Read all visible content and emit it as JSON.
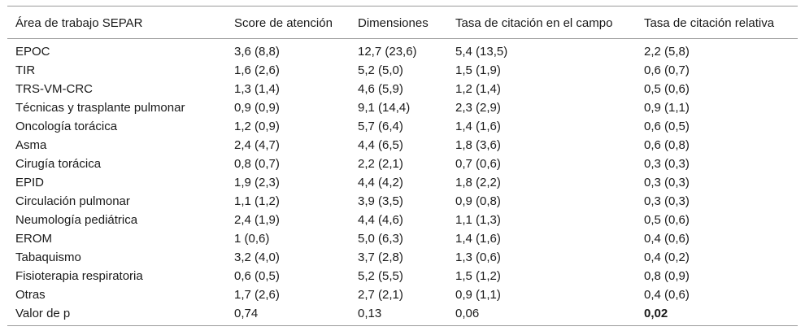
{
  "table": {
    "headers": [
      "Área de trabajo SEPAR",
      "Score de atención",
      "Dimensiones",
      "Tasa de citación en el campo",
      "Tasa de citación relativa"
    ],
    "rows": [
      [
        "EPOC",
        "3,6 (8,8)",
        "12,7 (23,6)",
        "5,4 (13,5)",
        "2,2 (5,8)"
      ],
      [
        "TIR",
        "1,6 (2,6)",
        "5,2 (5,0)",
        "1,5 (1,9)",
        "0,6 (0,7)"
      ],
      [
        "TRS-VM-CRC",
        "1,3 (1,4)",
        "4,6 (5,9)",
        "1,2 (1,4)",
        "0,5 (0,6)"
      ],
      [
        "Técnicas y trasplante pulmonar",
        "0,9 (0,9)",
        "9,1 (14,4)",
        "2,3 (2,9)",
        "0,9 (1,1)"
      ],
      [
        "Oncología torácica",
        "1,2 (0,9)",
        "5,7 (6,4)",
        "1,4 (1,6)",
        "0,6 (0,5)"
      ],
      [
        "Asma",
        "2,4 (4,7)",
        "4,4 (6,5)",
        "1,8 (3,6)",
        "0,6 (0,8)"
      ],
      [
        "Cirugía torácica",
        "0,8 (0,7)",
        "2,2 (2,1)",
        "0,7 (0,6)",
        "0,3 (0,3)"
      ],
      [
        "EPID",
        "1,9 (2,3)",
        "4,4 (4,2)",
        "1,8 (2,2)",
        "0,3 (0,3)"
      ],
      [
        "Circulación pulmonar",
        "1,1 (1,2)",
        "3,9 (3,5)",
        "0,9 (0,8)",
        "0,3 (0,3)"
      ],
      [
        "Neumología pediátrica",
        "2,4 (1,9)",
        "4,4 (4,6)",
        "1,1 (1,3)",
        "0,5 (0,6)"
      ],
      [
        "EROM",
        "1 (0,6)",
        "5,0 (6,3)",
        "1,4 (1,6)",
        "0,4 (0,6)"
      ],
      [
        "Tabaquismo",
        "3,2 (4,0)",
        "3,7 (2,8)",
        "1,3 (0,6)",
        "0,4 (0,2)"
      ],
      [
        "Fisioterapia respiratoria",
        "0,6 (0,5)",
        "5,2 (5,5)",
        "1,5 (1,2)",
        "0,8 (0,9)"
      ],
      [
        "Otras",
        "1,7 (2,6)",
        "2,7 (2,1)",
        "0,9 (1,1)",
        "0,4 (0,6)"
      ],
      [
        "Valor de p",
        "0,74",
        "0,13",
        "0,06",
        "0,02"
      ]
    ],
    "bold_cells": [
      [
        14,
        4
      ]
    ]
  }
}
